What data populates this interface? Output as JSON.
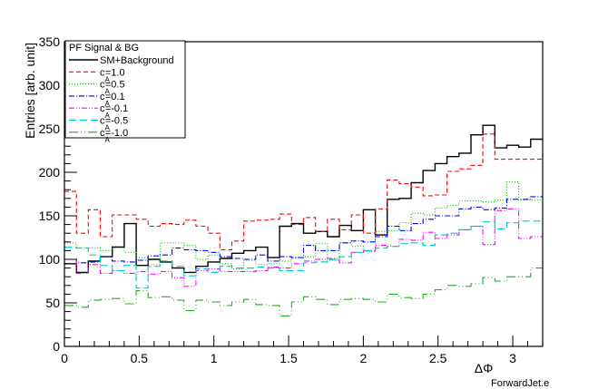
{
  "chart_data": {
    "type": "line",
    "style": "step histogram",
    "title": "",
    "xlabel": "ΔΦ",
    "ylabel": "Entries [arb. unit]",
    "corner_note": "ForwardJet.e",
    "xlim": [
      0,
      3.2
    ],
    "ylim": [
      0,
      350
    ],
    "x_ticks": [
      0,
      0.5,
      1,
      1.5,
      2,
      2.5,
      3
    ],
    "x_tick_labels": [
      "0",
      "0.5",
      "1",
      "1.5",
      "2",
      "2.5",
      "3"
    ],
    "y_ticks": [
      0,
      50,
      100,
      150,
      200,
      250,
      300,
      350
    ],
    "y_tick_labels": [
      "0",
      "50",
      "100",
      "150",
      "200",
      "250",
      "300",
      "350"
    ],
    "grid": false,
    "legend": {
      "title": "PF Signal & BG",
      "placement": "top-left",
      "entries": [
        {
          "label": "SM+Background",
          "sub": ""
        },
        {
          "label": "c =1.0",
          "sub": "A"
        },
        {
          "label": "c =0.5",
          "sub": "A"
        },
        {
          "label": "c =0.1",
          "sub": "A"
        },
        {
          "label": "c =-0.1",
          "sub": "A"
        },
        {
          "label": "c =-0.5",
          "sub": "A"
        },
        {
          "label": "c =-1.0",
          "sub": "A"
        }
      ]
    },
    "bin_edges": [
      0,
      0.08,
      0.16,
      0.24,
      0.32,
      0.4,
      0.48,
      0.56,
      0.64,
      0.72,
      0.8,
      0.88,
      0.96,
      1.04,
      1.12,
      1.2,
      1.28,
      1.36,
      1.44,
      1.52,
      1.6,
      1.68,
      1.76,
      1.84,
      1.92,
      2.0,
      2.08,
      2.16,
      2.24,
      2.32,
      2.4,
      2.48,
      2.56,
      2.64,
      2.72,
      2.8,
      2.88,
      2.96,
      3.04,
      3.12,
      3.2
    ],
    "series": [
      {
        "name": "SM+Background",
        "color": "#000000",
        "dash": "",
        "width": 1.4,
        "values": [
          95,
          85,
          98,
          103,
          114,
          141,
          93,
          100,
          97,
          90,
          85,
          92,
          97,
          101,
          107,
          110,
          114,
          102,
          138,
          141,
          130,
          132,
          126,
          139,
          133,
          157,
          128,
          169,
          170,
          188,
          202,
          210,
          218,
          222,
          243,
          254,
          228,
          231,
          229,
          238
        ]
      },
      {
        "name": "c =1.0",
        "color": "#ff0000",
        "dash": "5,3",
        "width": 1.1,
        "values": [
          178,
          130,
          157,
          126,
          151,
          151,
          146,
          138,
          141,
          140,
          145,
          138,
          130,
          111,
          121,
          144,
          145,
          146,
          152,
          140,
          148,
          132,
          146,
          134,
          151,
          130,
          158,
          191,
          187,
          183,
          173,
          174,
          201,
          204,
          208,
          244,
          215,
          215,
          215,
          215
        ]
      },
      {
        "name": "c =0.5",
        "color": "#00cc00",
        "dash": "1,2",
        "width": 1.2,
        "values": [
          119,
          113,
          113,
          110,
          115,
          108,
          102,
          94,
          119,
          119,
          116,
          100,
          105,
          95,
          89,
          99,
          94,
          95,
          98,
          102,
          103,
          118,
          99,
          119,
          115,
          109,
          132,
          133,
          142,
          153,
          151,
          159,
          162,
          167,
          167,
          166,
          168,
          189,
          168,
          168
        ]
      },
      {
        "name": "c =0.1",
        "color": "#0000ff",
        "dash": "6,2,1,2",
        "width": 1.1,
        "values": [
          100,
          96,
          97,
          103,
          98,
          97,
          99,
          104,
          105,
          113,
          111,
          110,
          108,
          103,
          101,
          100,
          105,
          98,
          103,
          102,
          116,
          110,
          110,
          119,
          121,
          120,
          126,
          138,
          133,
          141,
          146,
          150,
          150,
          158,
          160,
          157,
          159,
          169,
          169,
          172
        ]
      },
      {
        "name": "c =-0.1",
        "color": "#ff00ff",
        "dash": "6,2,1,2,1,2",
        "width": 1.1,
        "values": [
          100,
          84,
          94,
          84,
          87,
          84,
          86,
          83,
          86,
          79,
          69,
          87,
          89,
          86,
          86,
          86,
          87,
          91,
          90,
          95,
          98,
          100,
          101,
          96,
          108,
          110,
          116,
          115,
          123,
          122,
          131,
          124,
          128,
          134,
          138,
          117,
          156,
          158,
          124,
          126
        ]
      },
      {
        "name": "c =-0.5",
        "color": "#00cccc",
        "dash": "8,4",
        "width": 1.2,
        "values": [
          114,
          113,
          105,
          93,
          87,
          93,
          67,
          92,
          98,
          92,
          81,
          89,
          85,
          92,
          90,
          90,
          91,
          90,
          87,
          87,
          96,
          97,
          100,
          103,
          108,
          110,
          113,
          115,
          118,
          119,
          116,
          128,
          130,
          134,
          138,
          143,
          135,
          142,
          144,
          144
        ]
      },
      {
        "name": "c =-1.0",
        "color": "#22aa22",
        "dash": "10,3,1,3,1,3",
        "width": 1.1,
        "values": [
          47,
          45,
          53,
          54,
          55,
          49,
          64,
          56,
          57,
          53,
          41,
          53,
          51,
          47,
          51,
          54,
          48,
          47,
          35,
          51,
          57,
          54,
          48,
          54,
          55,
          54,
          51,
          60,
          56,
          55,
          60,
          65,
          70,
          69,
          72,
          79,
          75,
          80,
          80,
          90
        ]
      }
    ]
  }
}
